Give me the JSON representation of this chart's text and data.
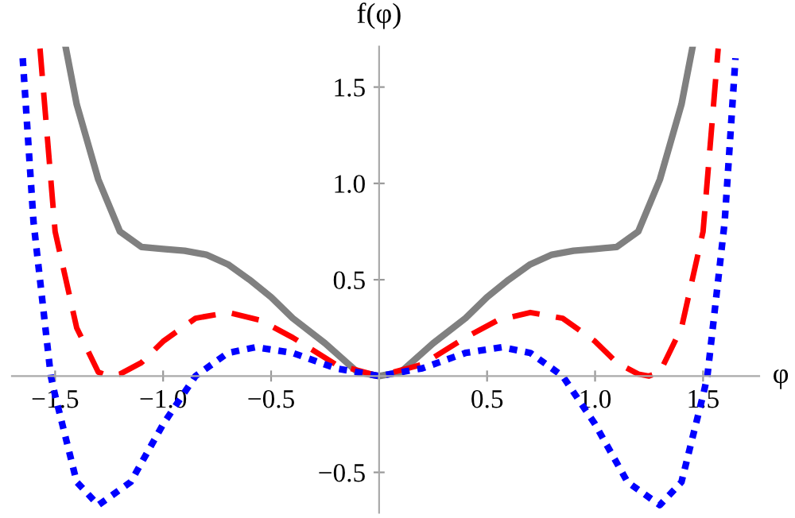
{
  "chart_data": {
    "type": "line",
    "xlabel": "φ",
    "ylabel": "f(φ)",
    "xlim": [
      -1.7,
      1.76
    ],
    "ylim": [
      -0.71,
      1.71
    ],
    "xticks": [
      {
        "value": -1.5,
        "label": "−1.5"
      },
      {
        "value": -1.0,
        "label": "−1.0"
      },
      {
        "value": -0.5,
        "label": "−0.5"
      },
      {
        "value": 0.5,
        "label": "0.5"
      },
      {
        "value": 1.0,
        "label": "1.0"
      },
      {
        "value": 1.5,
        "label": "1.5"
      }
    ],
    "yticks": [
      {
        "value": -0.5,
        "label": "−0.5"
      },
      {
        "value": 0.5,
        "label": "0.5"
      },
      {
        "value": 1.0,
        "label": "1.0"
      },
      {
        "value": 1.5,
        "label": "1.5"
      }
    ],
    "grid": false,
    "legend": false,
    "marker": "none",
    "series": [
      {
        "color": "#808080",
        "line_style": "solid",
        "x": [
          -1.45,
          -1.4,
          -1.3,
          -1.2,
          -1.1,
          -1.0,
          -0.9,
          -0.8,
          -0.7,
          -0.6,
          -0.5,
          -0.4,
          -0.25,
          -0.1,
          0,
          0.1,
          0.25,
          0.4,
          0.5,
          0.6,
          0.7,
          0.8,
          0.9,
          1.0,
          1.1,
          1.2,
          1.3,
          1.4,
          1.45
        ],
        "values": [
          1.7,
          1.41,
          1.02,
          0.75,
          0.67,
          0.66,
          0.65,
          0.63,
          0.58,
          0.5,
          0.41,
          0.3,
          0.17,
          0.02,
          0,
          0.02,
          0.17,
          0.3,
          0.41,
          0.5,
          0.58,
          0.63,
          0.65,
          0.66,
          0.67,
          0.75,
          1.02,
          1.41,
          1.7
        ]
      },
      {
        "color": "#ff0000",
        "line_style": "dashed",
        "x": [
          -1.57,
          -1.5,
          -1.4,
          -1.3,
          -1.25,
          -1.2,
          -1.1,
          -1.0,
          -0.85,
          -0.7,
          -0.55,
          -0.4,
          -0.2,
          0,
          0.2,
          0.4,
          0.55,
          0.7,
          0.85,
          1.0,
          1.1,
          1.2,
          1.25,
          1.3,
          1.4,
          1.5,
          1.57
        ],
        "values": [
          1.7,
          0.75,
          0.25,
          0.02,
          0,
          0.01,
          0.07,
          0.18,
          0.3,
          0.33,
          0.29,
          0.2,
          0.06,
          0,
          0.06,
          0.2,
          0.29,
          0.33,
          0.3,
          0.18,
          0.07,
          0.01,
          0,
          0.02,
          0.25,
          0.75,
          1.7
        ]
      },
      {
        "color": "#0000ff",
        "line_style": "dotted",
        "x": [
          -1.65,
          -1.6,
          -1.52,
          -1.5,
          -1.4,
          -1.3,
          -1.15,
          -1.0,
          -0.85,
          -0.7,
          -0.57,
          -0.4,
          -0.2,
          0,
          0.2,
          0.4,
          0.57,
          0.7,
          0.85,
          1.0,
          1.15,
          1.3,
          1.4,
          1.5,
          1.52,
          1.6,
          1.65
        ],
        "values": [
          1.65,
          0.8,
          0,
          -0.1,
          -0.55,
          -0.67,
          -0.55,
          -0.25,
          0,
          0.12,
          0.15,
          0.12,
          0.04,
          0,
          0.04,
          0.12,
          0.15,
          0.12,
          0,
          -0.25,
          -0.55,
          -0.67,
          -0.55,
          -0.1,
          0,
          0.8,
          1.65
        ]
      }
    ]
  }
}
